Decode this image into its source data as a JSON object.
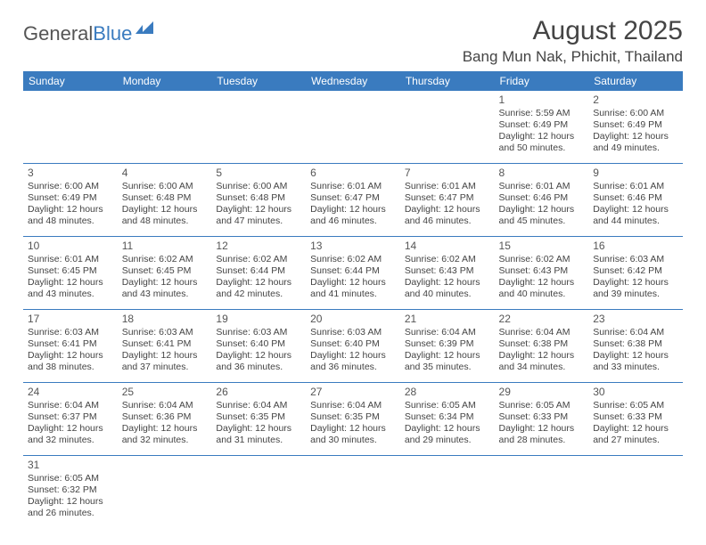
{
  "brand": {
    "part1": "General",
    "part2": "Blue"
  },
  "title": "August 2025",
  "location": "Bang Mun Nak, Phichit, Thailand",
  "colors": {
    "header_bg": "#3a7bbf",
    "header_text": "#ffffff",
    "cell_border": "#3a7bbf",
    "text": "#444444",
    "background": "#ffffff"
  },
  "day_headers": [
    "Sunday",
    "Monday",
    "Tuesday",
    "Wednesday",
    "Thursday",
    "Friday",
    "Saturday"
  ],
  "weeks": [
    [
      null,
      null,
      null,
      null,
      null,
      {
        "n": "1",
        "sunrise": "Sunrise: 5:59 AM",
        "sunset": "Sunset: 6:49 PM",
        "daylight": "Daylight: 12 hours and 50 minutes."
      },
      {
        "n": "2",
        "sunrise": "Sunrise: 6:00 AM",
        "sunset": "Sunset: 6:49 PM",
        "daylight": "Daylight: 12 hours and 49 minutes."
      }
    ],
    [
      {
        "n": "3",
        "sunrise": "Sunrise: 6:00 AM",
        "sunset": "Sunset: 6:49 PM",
        "daylight": "Daylight: 12 hours and 48 minutes."
      },
      {
        "n": "4",
        "sunrise": "Sunrise: 6:00 AM",
        "sunset": "Sunset: 6:48 PM",
        "daylight": "Daylight: 12 hours and 48 minutes."
      },
      {
        "n": "5",
        "sunrise": "Sunrise: 6:00 AM",
        "sunset": "Sunset: 6:48 PM",
        "daylight": "Daylight: 12 hours and 47 minutes."
      },
      {
        "n": "6",
        "sunrise": "Sunrise: 6:01 AM",
        "sunset": "Sunset: 6:47 PM",
        "daylight": "Daylight: 12 hours and 46 minutes."
      },
      {
        "n": "7",
        "sunrise": "Sunrise: 6:01 AM",
        "sunset": "Sunset: 6:47 PM",
        "daylight": "Daylight: 12 hours and 46 minutes."
      },
      {
        "n": "8",
        "sunrise": "Sunrise: 6:01 AM",
        "sunset": "Sunset: 6:46 PM",
        "daylight": "Daylight: 12 hours and 45 minutes."
      },
      {
        "n": "9",
        "sunrise": "Sunrise: 6:01 AM",
        "sunset": "Sunset: 6:46 PM",
        "daylight": "Daylight: 12 hours and 44 minutes."
      }
    ],
    [
      {
        "n": "10",
        "sunrise": "Sunrise: 6:01 AM",
        "sunset": "Sunset: 6:45 PM",
        "daylight": "Daylight: 12 hours and 43 minutes."
      },
      {
        "n": "11",
        "sunrise": "Sunrise: 6:02 AM",
        "sunset": "Sunset: 6:45 PM",
        "daylight": "Daylight: 12 hours and 43 minutes."
      },
      {
        "n": "12",
        "sunrise": "Sunrise: 6:02 AM",
        "sunset": "Sunset: 6:44 PM",
        "daylight": "Daylight: 12 hours and 42 minutes."
      },
      {
        "n": "13",
        "sunrise": "Sunrise: 6:02 AM",
        "sunset": "Sunset: 6:44 PM",
        "daylight": "Daylight: 12 hours and 41 minutes."
      },
      {
        "n": "14",
        "sunrise": "Sunrise: 6:02 AM",
        "sunset": "Sunset: 6:43 PM",
        "daylight": "Daylight: 12 hours and 40 minutes."
      },
      {
        "n": "15",
        "sunrise": "Sunrise: 6:02 AM",
        "sunset": "Sunset: 6:43 PM",
        "daylight": "Daylight: 12 hours and 40 minutes."
      },
      {
        "n": "16",
        "sunrise": "Sunrise: 6:03 AM",
        "sunset": "Sunset: 6:42 PM",
        "daylight": "Daylight: 12 hours and 39 minutes."
      }
    ],
    [
      {
        "n": "17",
        "sunrise": "Sunrise: 6:03 AM",
        "sunset": "Sunset: 6:41 PM",
        "daylight": "Daylight: 12 hours and 38 minutes."
      },
      {
        "n": "18",
        "sunrise": "Sunrise: 6:03 AM",
        "sunset": "Sunset: 6:41 PM",
        "daylight": "Daylight: 12 hours and 37 minutes."
      },
      {
        "n": "19",
        "sunrise": "Sunrise: 6:03 AM",
        "sunset": "Sunset: 6:40 PM",
        "daylight": "Daylight: 12 hours and 36 minutes."
      },
      {
        "n": "20",
        "sunrise": "Sunrise: 6:03 AM",
        "sunset": "Sunset: 6:40 PM",
        "daylight": "Daylight: 12 hours and 36 minutes."
      },
      {
        "n": "21",
        "sunrise": "Sunrise: 6:04 AM",
        "sunset": "Sunset: 6:39 PM",
        "daylight": "Daylight: 12 hours and 35 minutes."
      },
      {
        "n": "22",
        "sunrise": "Sunrise: 6:04 AM",
        "sunset": "Sunset: 6:38 PM",
        "daylight": "Daylight: 12 hours and 34 minutes."
      },
      {
        "n": "23",
        "sunrise": "Sunrise: 6:04 AM",
        "sunset": "Sunset: 6:38 PM",
        "daylight": "Daylight: 12 hours and 33 minutes."
      }
    ],
    [
      {
        "n": "24",
        "sunrise": "Sunrise: 6:04 AM",
        "sunset": "Sunset: 6:37 PM",
        "daylight": "Daylight: 12 hours and 32 minutes."
      },
      {
        "n": "25",
        "sunrise": "Sunrise: 6:04 AM",
        "sunset": "Sunset: 6:36 PM",
        "daylight": "Daylight: 12 hours and 32 minutes."
      },
      {
        "n": "26",
        "sunrise": "Sunrise: 6:04 AM",
        "sunset": "Sunset: 6:35 PM",
        "daylight": "Daylight: 12 hours and 31 minutes."
      },
      {
        "n": "27",
        "sunrise": "Sunrise: 6:04 AM",
        "sunset": "Sunset: 6:35 PM",
        "daylight": "Daylight: 12 hours and 30 minutes."
      },
      {
        "n": "28",
        "sunrise": "Sunrise: 6:05 AM",
        "sunset": "Sunset: 6:34 PM",
        "daylight": "Daylight: 12 hours and 29 minutes."
      },
      {
        "n": "29",
        "sunrise": "Sunrise: 6:05 AM",
        "sunset": "Sunset: 6:33 PM",
        "daylight": "Daylight: 12 hours and 28 minutes."
      },
      {
        "n": "30",
        "sunrise": "Sunrise: 6:05 AM",
        "sunset": "Sunset: 6:33 PM",
        "daylight": "Daylight: 12 hours and 27 minutes."
      }
    ],
    [
      {
        "n": "31",
        "sunrise": "Sunrise: 6:05 AM",
        "sunset": "Sunset: 6:32 PM",
        "daylight": "Daylight: 12 hours and 26 minutes."
      },
      null,
      null,
      null,
      null,
      null,
      null
    ]
  ]
}
